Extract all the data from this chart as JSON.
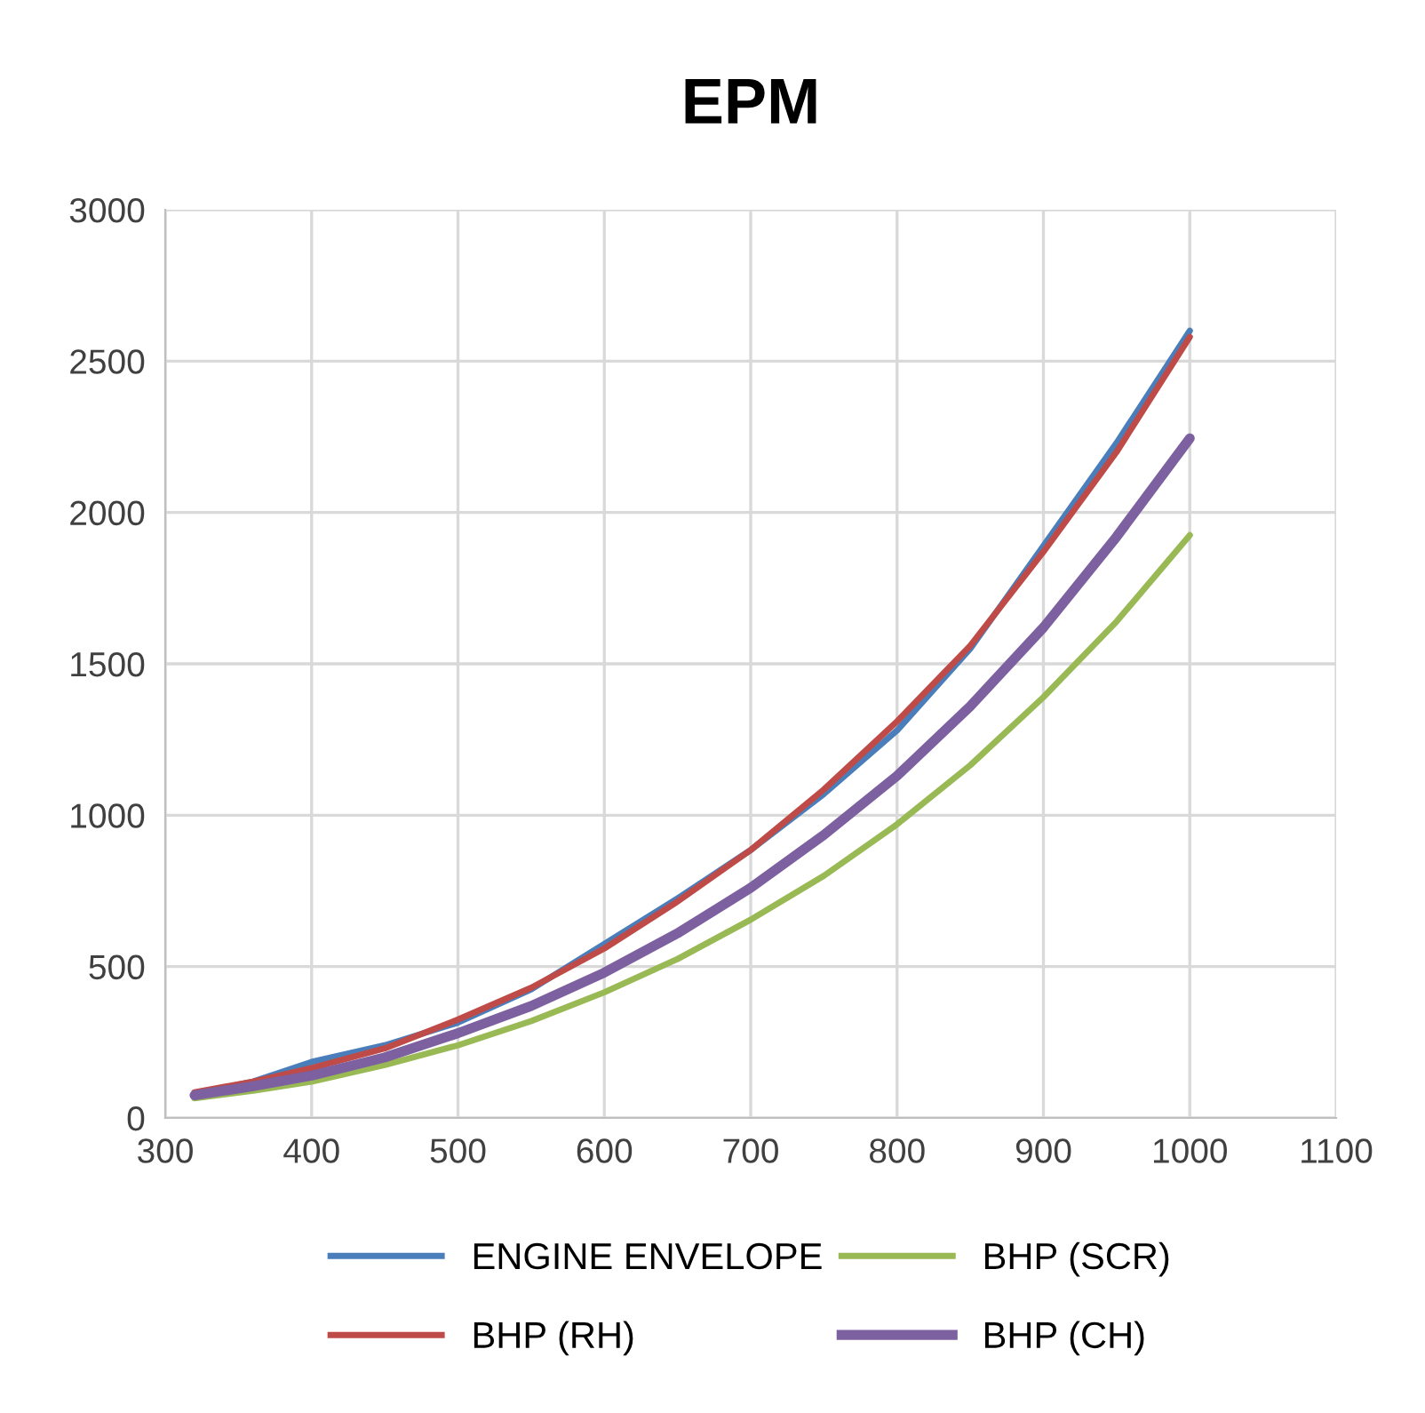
{
  "chart_data": {
    "type": "line",
    "title": "EPM",
    "x": [
      320,
      360,
      400,
      450,
      500,
      550,
      600,
      650,
      700,
      750,
      800,
      850,
      900,
      950,
      1000
    ],
    "series": [
      {
        "name": "ENGINE ENVELOPE",
        "color": "#4a7ebb",
        "values": [
          80,
          120,
          185,
          240,
          315,
          425,
          575,
          725,
          885,
          1070,
          1280,
          1550,
          1890,
          2230,
          2600
        ]
      },
      {
        "name": "BHP (RH)",
        "color": "#be4b48",
        "values": [
          85,
          120,
          165,
          230,
          325,
          430,
          560,
          715,
          885,
          1085,
          1310,
          1560,
          1870,
          2200,
          2580
        ]
      },
      {
        "name": "BHP (SCR)",
        "color": "#98b954",
        "values": [
          65,
          90,
          120,
          175,
          240,
          320,
          415,
          525,
          655,
          800,
          970,
          1165,
          1390,
          1640,
          1925
        ]
      },
      {
        "name": "BHP (CH)",
        "color": "#7d60a0",
        "values": [
          75,
          105,
          140,
          200,
          280,
          370,
          480,
          610,
          760,
          935,
          1130,
          1360,
          1620,
          1920,
          2245
        ]
      }
    ],
    "xlim": [
      300,
      1100
    ],
    "xticks": [
      300,
      400,
      500,
      600,
      700,
      800,
      900,
      1000,
      1100
    ],
    "ylim": [
      0,
      3000
    ],
    "yticks": [
      0,
      500,
      1000,
      1500,
      2000,
      2500,
      3000
    ],
    "grid": true,
    "legend": "bottom",
    "marker": "none",
    "line_style": "solid"
  }
}
